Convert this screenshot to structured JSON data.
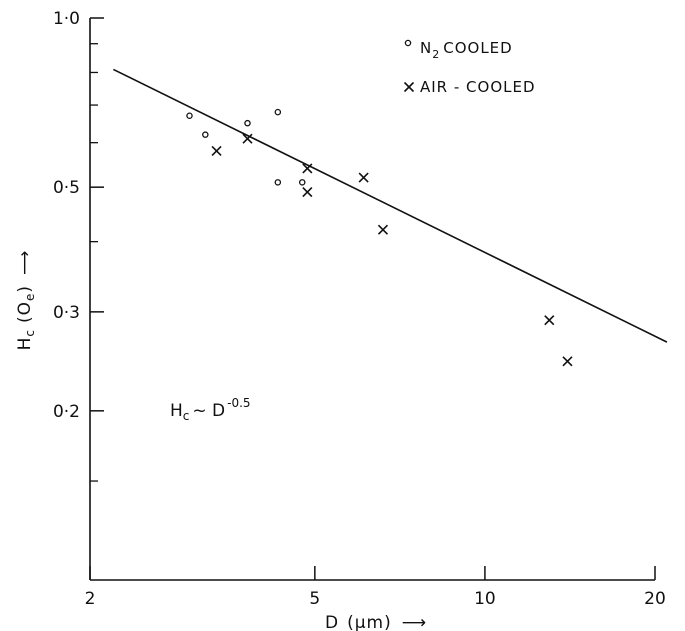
{
  "chart_data": {
    "type": "scatter",
    "x_scale": "log",
    "y_scale": "log",
    "xlim": [
      2,
      20
    ],
    "ylim": [
      0.1,
      1.0
    ],
    "grid": false,
    "legend_position": "top-right",
    "x_ticks": [
      {
        "value": 2,
        "label": "2"
      },
      {
        "value": 5,
        "label": "5"
      },
      {
        "value": 10,
        "label": "10"
      },
      {
        "value": 20,
        "label": "20"
      }
    ],
    "y_ticks": [
      {
        "value": 1.0,
        "label": "1·0"
      },
      {
        "value": 0.5,
        "label": "0·5"
      },
      {
        "value": 0.3,
        "label": "0·3"
      },
      {
        "value": 0.2,
        "label": "0·2"
      }
    ],
    "y_minor_ticks": [
      0.9,
      0.8,
      0.7,
      0.6,
      0.4,
      0.15
    ],
    "xlabel": {
      "main": "D",
      "unit": "(μm)",
      "arrow": "⟶"
    },
    "ylabel": {
      "main": "H",
      "sub": "c",
      "unit": "(O",
      "unit_sub": "e",
      "unit_close": ")",
      "arrow": "⟶"
    },
    "series": [
      {
        "name": "N2 COOLED",
        "legend": {
          "text_a": "N",
          "text_sub": "2",
          "text_b": "COOLED"
        },
        "marker": "circle",
        "points": [
          {
            "x": 3.0,
            "y": 0.67
          },
          {
            "x": 3.2,
            "y": 0.62
          },
          {
            "x": 3.8,
            "y": 0.65
          },
          {
            "x": 4.3,
            "y": 0.68
          },
          {
            "x": 4.3,
            "y": 0.51
          },
          {
            "x": 4.75,
            "y": 0.51
          }
        ]
      },
      {
        "name": "AIR-COOLED",
        "legend": {
          "text_a": "AIR - COOLED"
        },
        "marker": "x",
        "points": [
          {
            "x": 3.35,
            "y": 0.58
          },
          {
            "x": 3.8,
            "y": 0.61
          },
          {
            "x": 4.85,
            "y": 0.54
          },
          {
            "x": 4.85,
            "y": 0.49
          },
          {
            "x": 6.1,
            "y": 0.52
          },
          {
            "x": 6.6,
            "y": 0.42
          },
          {
            "x": 13.0,
            "y": 0.29
          },
          {
            "x": 14.0,
            "y": 0.245
          }
        ]
      }
    ],
    "fit_line": {
      "x": [
        2.2,
        21.0
      ],
      "y": [
        0.81,
        0.265
      ]
    },
    "annotation": {
      "base": "H",
      "sub": "c",
      "mid": "~ D",
      "sup": "-0.5"
    }
  }
}
